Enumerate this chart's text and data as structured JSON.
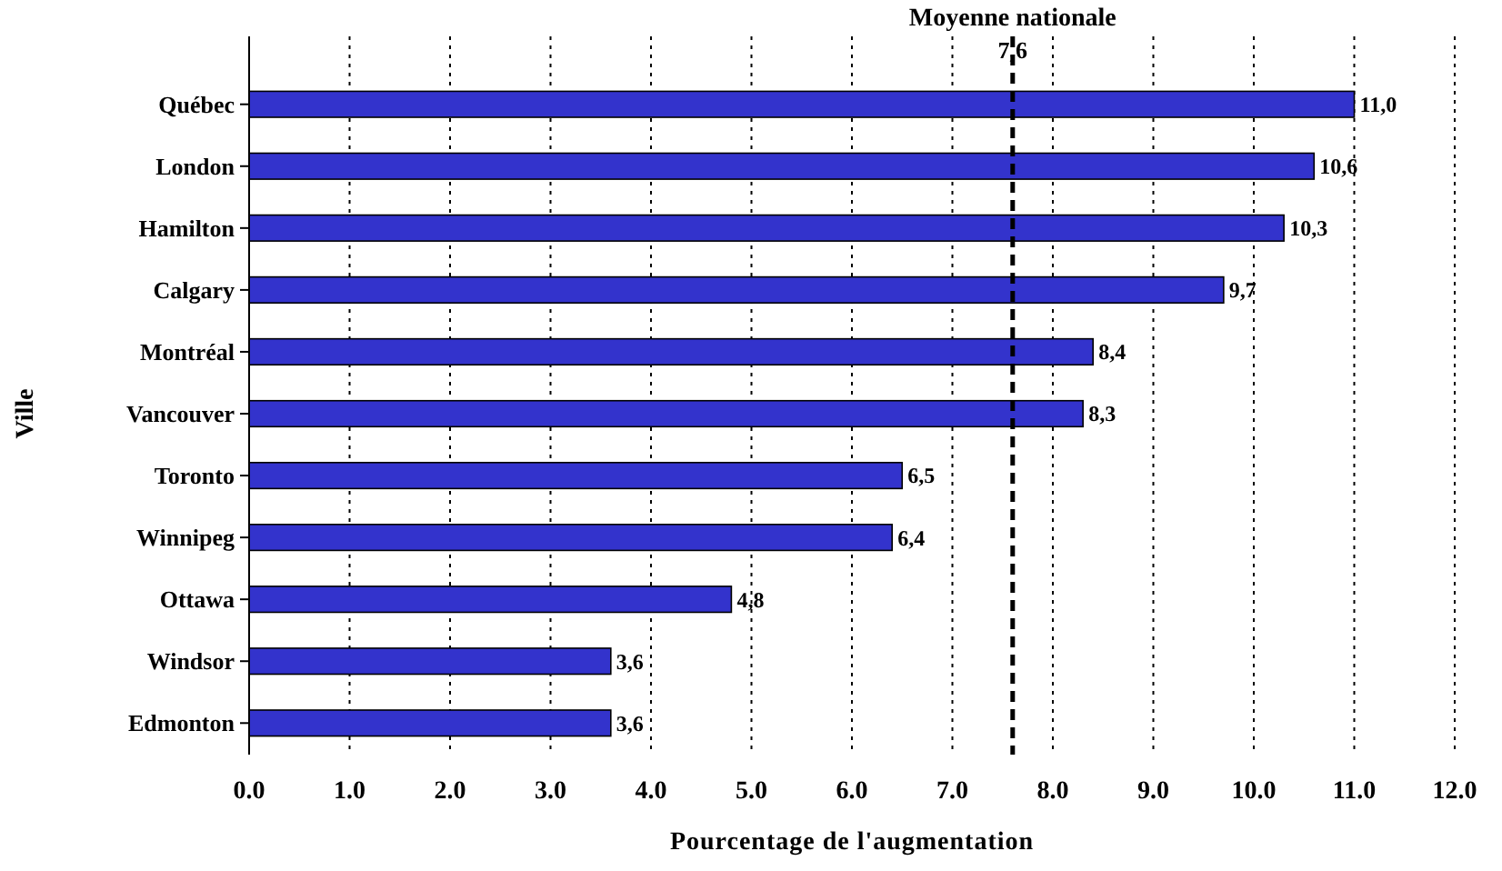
{
  "chart_data": {
    "type": "bar",
    "orientation": "horizontal",
    "xlabel": "Pourcentage de l'augmentation",
    "ylabel": "Ville",
    "categories": [
      "Québec",
      "London",
      "Hamilton",
      "Calgary",
      "Montréal",
      "Vancouver",
      "Toronto",
      "Winnipeg",
      "Ottawa",
      "Windsor",
      "Edmonton"
    ],
    "values": [
      11.0,
      10.6,
      10.3,
      9.7,
      8.4,
      8.3,
      6.5,
      6.4,
      4.8,
      3.6,
      3.6
    ],
    "value_labels": [
      "11,0",
      "10,6",
      "10,3",
      "9,7",
      "8,4",
      "8,3",
      "6,5",
      "6,4",
      "4,8",
      "3,6",
      "3,6"
    ],
    "color": "#3333cc",
    "xlim": [
      0,
      12
    ],
    "xticks": [
      {
        "value": 0,
        "label": "0.0"
      },
      {
        "value": 1,
        "label": "1.0"
      },
      {
        "value": 2,
        "label": "2.0"
      },
      {
        "value": 3,
        "label": "3.0"
      },
      {
        "value": 4,
        "label": "4.0"
      },
      {
        "value": 5,
        "label": "5.0"
      },
      {
        "value": 6,
        "label": "6.0"
      },
      {
        "value": 7,
        "label": "7.0"
      },
      {
        "value": 8,
        "label": "8.0"
      },
      {
        "value": 9,
        "label": "9.0"
      },
      {
        "value": 10,
        "label": "10.0"
      },
      {
        "value": 11,
        "label": "11.0"
      },
      {
        "value": 12,
        "label": "12.0"
      }
    ],
    "grid": "x",
    "ref_lines": [
      {
        "axis": "x",
        "value": 7.6,
        "label": "Moyenne nationale",
        "line_style": "dashed",
        "color": "#000000"
      }
    ],
    "annotations": [
      {
        "text": "7,6",
        "x": 7.6
      }
    ]
  }
}
